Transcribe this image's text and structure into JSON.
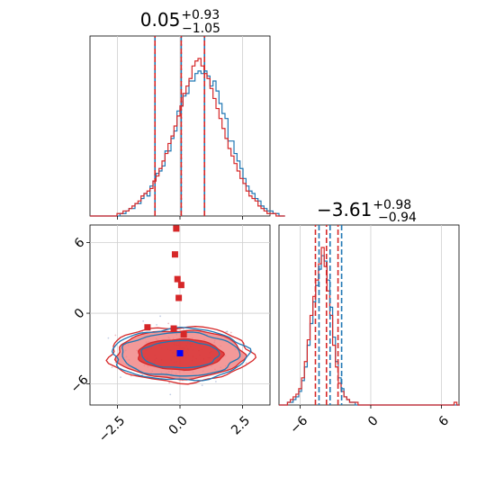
{
  "chart_data": [
    {
      "type": "histogram",
      "panel": "marginal-x",
      "title_value": "0.05",
      "title_plus": "+0.93",
      "title_minus": "−1.05",
      "xlim": [
        -3.6,
        3.6
      ],
      "grid": true,
      "series": [
        {
          "color": "#1f77b4",
          "bin_edges_start": -3.6,
          "bin_width": 0.12,
          "counts": [
            0,
            0,
            0,
            0,
            0,
            0,
            0,
            0,
            0,
            0,
            1,
            1,
            2,
            3,
            3,
            5,
            5,
            7,
            9,
            8,
            12,
            14,
            17,
            18,
            20,
            26,
            26,
            31,
            34,
            42,
            44,
            48,
            49,
            54,
            54,
            57,
            58,
            57,
            58,
            56,
            52,
            54,
            50,
            45,
            41,
            39,
            30,
            30,
            25,
            22,
            19,
            15,
            12,
            10,
            9,
            7,
            6,
            4,
            3,
            2,
            2,
            1,
            1,
            0,
            0
          ]
        },
        {
          "color": "#d62728",
          "bin_edges_start": -3.6,
          "bin_width": 0.12,
          "counts": [
            0,
            0,
            0,
            0,
            0,
            0,
            0,
            0,
            0,
            1,
            1,
            2,
            2,
            3,
            4,
            5,
            6,
            8,
            9,
            10,
            11,
            14,
            16,
            19,
            22,
            25,
            29,
            32,
            36,
            40,
            44,
            49,
            52,
            55,
            60,
            62,
            63,
            60,
            57,
            55,
            51,
            47,
            43,
            39,
            35,
            31,
            27,
            24,
            21,
            18,
            15,
            13,
            10,
            8,
            7,
            6,
            4,
            3,
            2,
            1,
            1,
            1,
            0,
            0,
            0
          ]
        }
      ],
      "quantile_lines": [
        {
          "color": "#1f77b4",
          "values": [
            -1.0,
            0.05,
            0.98
          ]
        },
        {
          "color": "#d62728",
          "values": [
            -1.0,
            0.05,
            0.98
          ]
        }
      ]
    },
    {
      "type": "contour-scatter",
      "panel": "joint",
      "xlim": [
        -3.6,
        3.6
      ],
      "ylim": [
        -7.8,
        7.5
      ],
      "xticks": [
        "−2.5",
        "0.0",
        "2.5"
      ],
      "xtick_values": [
        -2.5,
        0.0,
        2.5
      ],
      "yticks": [
        "6",
        "0",
        "−6"
      ],
      "ytick_values": [
        6,
        0,
        -6
      ],
      "grid": true,
      "center": [
        0.0,
        -3.5
      ],
      "red_markers": [
        [
          -0.15,
          7.2
        ],
        [
          -0.2,
          5.0
        ],
        [
          -0.1,
          2.9
        ],
        [
          0.05,
          2.4
        ],
        [
          -0.05,
          1.3
        ],
        [
          -1.3,
          -1.2
        ],
        [
          -0.25,
          -1.3
        ],
        [
          0.15,
          -1.8
        ]
      ],
      "blue_marker": [
        0.0,
        -3.4
      ],
      "colors": {
        "blue": "#1f77b4",
        "red": "#d62728",
        "red_fill": "#f08080",
        "red_fill_dark": "#d62728"
      }
    },
    {
      "type": "histogram",
      "panel": "marginal-y",
      "title_value": "−3.61",
      "title_plus": "+0.98",
      "title_minus": "−0.94",
      "xlim": [
        -7.8,
        7.5
      ],
      "xticks": [
        "−6",
        "0",
        "6"
      ],
      "xtick_values": [
        -6,
        0,
        6
      ],
      "grid": true,
      "series": [
        {
          "color": "#1f77b4",
          "bin_edges_start": -7.8,
          "bin_width": 0.24,
          "counts": [
            0,
            0,
            0,
            1,
            1,
            2,
            3,
            5,
            9,
            14,
            22,
            30,
            38,
            44,
            50,
            55,
            53,
            46,
            36,
            25,
            16,
            10,
            6,
            3,
            2,
            1,
            1,
            0,
            0,
            0,
            0,
            0,
            0,
            0,
            0,
            0,
            0,
            0,
            0,
            0,
            0,
            0,
            0,
            0,
            0,
            0,
            0,
            0,
            0,
            0,
            0,
            0,
            0,
            0,
            0,
            0,
            0,
            0,
            0,
            0,
            0,
            0,
            0,
            0
          ]
        },
        {
          "color": "#d62728",
          "bin_edges_start": -7.8,
          "bin_width": 0.24,
          "counts": [
            0,
            0,
            0,
            1,
            2,
            3,
            4,
            6,
            10,
            16,
            24,
            33,
            40,
            46,
            52,
            58,
            51,
            42,
            33,
            22,
            14,
            8,
            5,
            3,
            2,
            1,
            1,
            1,
            0,
            0,
            0,
            0,
            0,
            0,
            0,
            0,
            0,
            0,
            0,
            0,
            0,
            0,
            0,
            0,
            0,
            0,
            0,
            0,
            0,
            0,
            0,
            0,
            0,
            0,
            0,
            0,
            0,
            0,
            0,
            0,
            0,
            0,
            1,
            0
          ]
        }
      ],
      "quantile_lines": [
        {
          "color": "#1f77b4",
          "values": [
            -4.55,
            -3.61,
            -2.63
          ]
        },
        {
          "color": "#d62728",
          "values": [
            -4.55,
            -3.61,
            -2.63
          ]
        }
      ]
    }
  ]
}
